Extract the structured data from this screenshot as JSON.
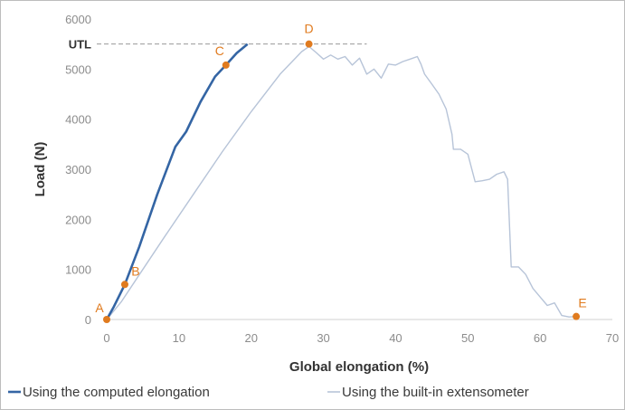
{
  "chart_data": {
    "type": "line",
    "xlabel": "Global elongation (%)",
    "ylabel": "Load (N)",
    "xlim": [
      0,
      70
    ],
    "ylim": [
      0,
      6000
    ],
    "x_ticks": [
      0,
      10,
      20,
      30,
      40,
      50,
      60,
      70
    ],
    "y_ticks": [
      0,
      1000,
      2000,
      3000,
      4000,
      5000,
      6000
    ],
    "grid": false,
    "legend_position": "bottom",
    "utl": {
      "label": "UTL",
      "value": 5500,
      "x_end": 36
    },
    "series": [
      {
        "name": "Using the computed elongation",
        "color": "#3465a4",
        "x": [
          0,
          1,
          2.5,
          4.5,
          7,
          9.5,
          11,
          13,
          15,
          16.5,
          18,
          19.5
        ],
        "y": [
          0,
          260,
          700,
          1450,
          2500,
          3450,
          3750,
          4350,
          4850,
          5080,
          5320,
          5500
        ]
      },
      {
        "name": "Using the built-in extensometer",
        "color": "#b7c4d8",
        "x": [
          0,
          2,
          5,
          8,
          12,
          16,
          20,
          24,
          27,
          28,
          29,
          30,
          31,
          32,
          33,
          34,
          35,
          36,
          37,
          38,
          39,
          40,
          41,
          42,
          43,
          43.5,
          44,
          45,
          46,
          47,
          47.8,
          48,
          49,
          50,
          51,
          52,
          53,
          54,
          55,
          55.5,
          56,
          57,
          58,
          59,
          60,
          61,
          62,
          63,
          64,
          65
        ],
        "y": [
          0,
          350,
          1000,
          1650,
          2500,
          3350,
          4150,
          4900,
          5350,
          5450,
          5330,
          5200,
          5280,
          5200,
          5250,
          5080,
          5220,
          4900,
          5000,
          4820,
          5100,
          5080,
          5150,
          5200,
          5250,
          5100,
          4900,
          4700,
          4500,
          4200,
          3700,
          3400,
          3400,
          3300,
          2750,
          2770,
          2800,
          2900,
          2950,
          2800,
          1050,
          1050,
          900,
          620,
          450,
          280,
          330,
          80,
          50,
          60
        ]
      }
    ],
    "points": [
      {
        "label": "A",
        "x": 0,
        "y": 0
      },
      {
        "label": "B",
        "x": 2.5,
        "y": 700
      },
      {
        "label": "C",
        "x": 16.5,
        "y": 5080
      },
      {
        "label": "D",
        "x": 28,
        "y": 5500
      },
      {
        "label": "E",
        "x": 65,
        "y": 60
      }
    ],
    "point_color": "#e07b1f"
  }
}
